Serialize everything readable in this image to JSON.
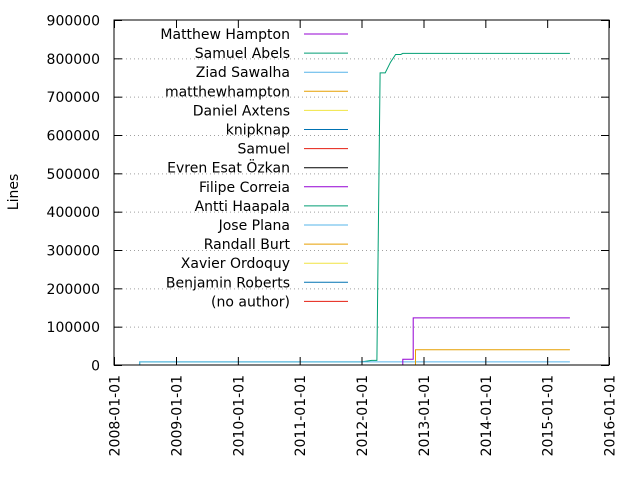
{
  "chart_data": {
    "type": "line",
    "title": "",
    "xlabel": "",
    "ylabel": "Lines",
    "xlim": [
      "2008-01-01",
      "2016-01-01"
    ],
    "ylim": [
      0,
      900000
    ],
    "x_ticks": [
      "2008-01-01",
      "2009-01-01",
      "2010-01-01",
      "2011-01-01",
      "2012-01-01",
      "2013-01-01",
      "2014-01-01",
      "2015-01-01",
      "2016-01-01"
    ],
    "y_ticks": [
      0,
      100000,
      200000,
      300000,
      400000,
      500000,
      600000,
      700000,
      800000,
      900000
    ],
    "grid": "horizontal dotted",
    "legend_position": "top-left",
    "series": [
      {
        "name": "Matthew Hampton",
        "color": "#9400d3",
        "points": [
          [
            "2008-01-01",
            0
          ]
        ]
      },
      {
        "name": "Samuel Abels",
        "color": "#009e73",
        "points": [
          [
            "2008-06-01",
            0
          ],
          [
            "2008-06-01",
            8000
          ],
          [
            "2012-01-01",
            8000
          ],
          [
            "2012-03-01",
            12000
          ],
          [
            "2012-04-01",
            12000
          ],
          [
            "2012-04-20",
            762000
          ],
          [
            "2012-05-20",
            762000
          ],
          [
            "2012-06-20",
            790000
          ],
          [
            "2012-07-20",
            810000
          ],
          [
            "2012-08-20",
            810000
          ],
          [
            "2012-09-01",
            813000
          ],
          [
            "2015-05-15",
            813000
          ]
        ]
      },
      {
        "name": "Ziad Sawalha",
        "color": "#56b4e9",
        "points": [
          [
            "2008-06-01",
            0
          ],
          [
            "2008-06-01",
            8000
          ],
          [
            "2015-05-15",
            8000
          ]
        ]
      },
      {
        "name": "matthewhampton",
        "color": "#e69f00",
        "points": [
          [
            "2012-11-15",
            0
          ],
          [
            "2012-11-15",
            40000
          ],
          [
            "2015-05-15",
            40000
          ]
        ]
      },
      {
        "name": "Daniel Axtens",
        "color": "#f0e442",
        "points": [
          [
            "2008-01-01",
            0
          ]
        ]
      },
      {
        "name": "knipknap",
        "color": "#0072b2",
        "points": [
          [
            "2008-01-01",
            0
          ]
        ]
      },
      {
        "name": "Samuel",
        "color": "#e51e10",
        "points": [
          [
            "2008-01-01",
            0
          ]
        ]
      },
      {
        "name": "Evren Esat Özkan",
        "color": "#000000",
        "points": [
          [
            "2008-01-01",
            0
          ]
        ]
      },
      {
        "name": "Filipe Correia",
        "color": "#9400d3",
        "points": [
          [
            "2012-09-01",
            0
          ],
          [
            "2012-09-01",
            15000
          ],
          [
            "2012-11-01",
            15000
          ],
          [
            "2012-11-01",
            123000
          ],
          [
            "2015-05-15",
            123000
          ]
        ]
      },
      {
        "name": "Antti Haapala",
        "color": "#009e73",
        "points": [
          [
            "2008-01-01",
            0
          ]
        ]
      },
      {
        "name": "Jose Plana",
        "color": "#56b4e9",
        "points": [
          [
            "2008-01-01",
            0
          ]
        ]
      },
      {
        "name": "Randall Burt",
        "color": "#e69f00",
        "points": [
          [
            "2008-01-01",
            0
          ]
        ]
      },
      {
        "name": "Xavier Ordoquy",
        "color": "#f0e442",
        "points": [
          [
            "2008-01-01",
            0
          ]
        ]
      },
      {
        "name": "Benjamin Roberts",
        "color": "#0072b2",
        "points": [
          [
            "2008-01-01",
            0
          ]
        ]
      },
      {
        "name": "(no author)",
        "color": "#e51e10",
        "points": [
          [
            "2008-01-01",
            0
          ]
        ]
      }
    ]
  }
}
